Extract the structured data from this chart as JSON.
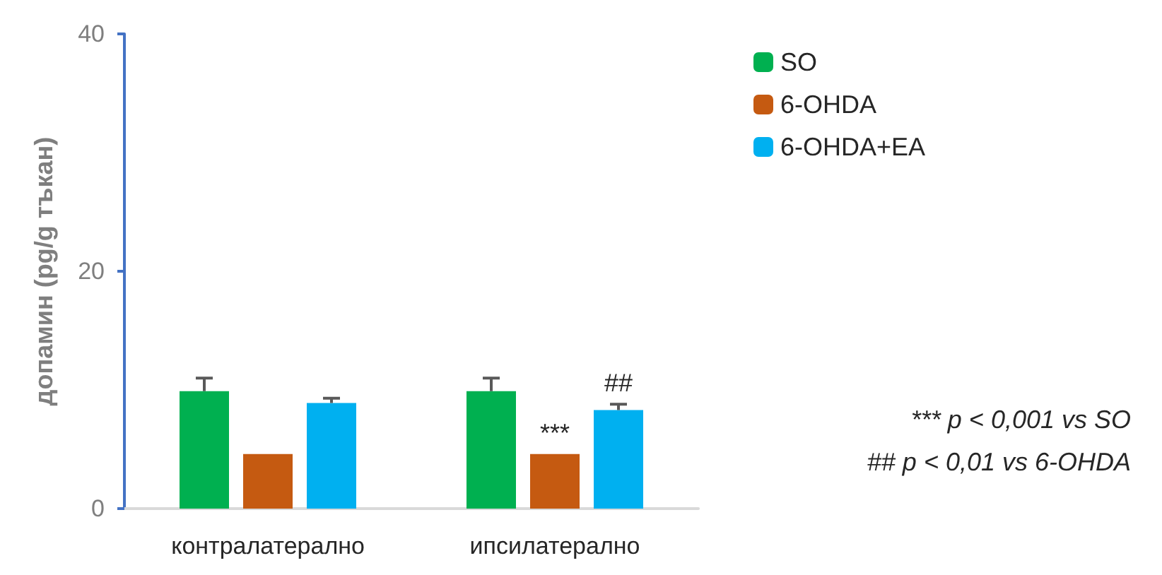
{
  "chart_data": {
    "type": "bar",
    "ylabel": "допамин (pg/g тъкан)",
    "categories": [
      "контралатерално",
      "ипсилатерално"
    ],
    "series": [
      {
        "name": "SO",
        "color": "#00b050",
        "values": [
          9.9,
          9.9
        ],
        "errors": [
          [
            9.9,
            11.0
          ],
          [
            9.9,
            11.0
          ]
        ]
      },
      {
        "name": "6-OHDA",
        "color": "#c55a11",
        "values": [
          4.6,
          4.6
        ]
      },
      {
        "name": "6-OHDA+EA",
        "color": "#00b0f0",
        "values": [
          8.9,
          8.3
        ],
        "errors": [
          [
            8.9,
            9.3
          ],
          [
            8.3,
            8.8
          ]
        ]
      }
    ],
    "ylim": [
      0,
      40
    ],
    "yticks": [
      0,
      20,
      40
    ],
    "grid": false,
    "legend": "top right",
    "annotations": [
      "***",
      "##",
      "*** p < 0,001 vs SO",
      "## p < 0,01 vs 6-OHDA"
    ]
  }
}
